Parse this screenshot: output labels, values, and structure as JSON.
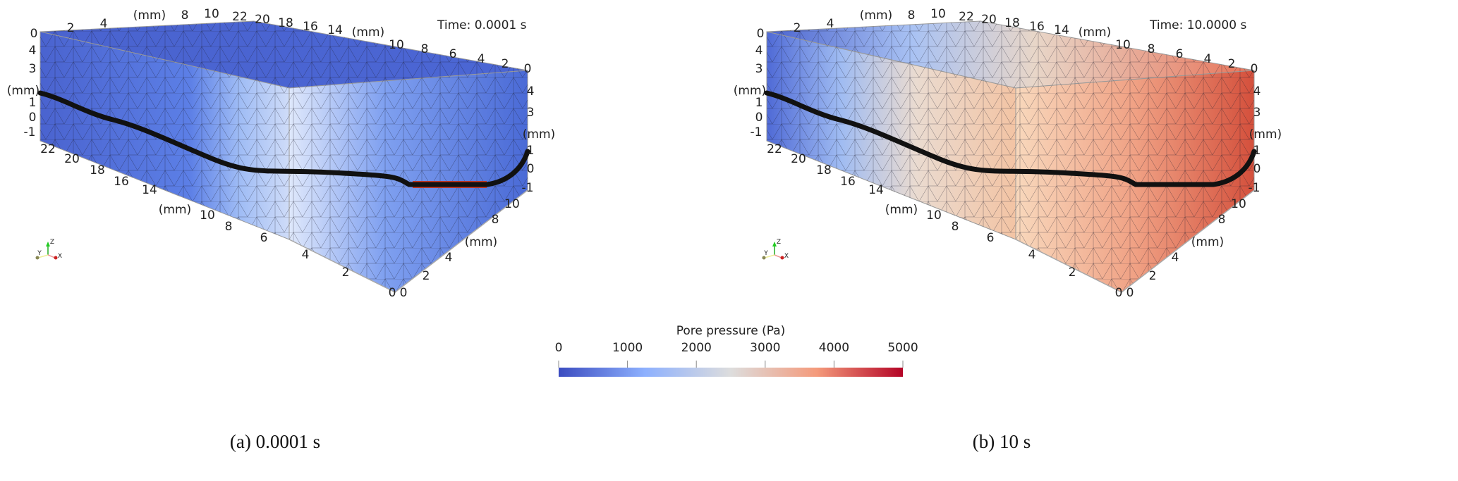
{
  "panels": [
    {
      "time_label": "Time: 0.0001 s",
      "caption": "(a) 0.0001 s",
      "top_left_ticks": [
        "0",
        "2",
        "4",
        "(mm)",
        "8",
        "10"
      ],
      "top_right_ticks": [
        "22",
        "20",
        "18",
        "16",
        "14",
        "(mm)",
        "10",
        "8",
        "6",
        "4",
        "2",
        "0"
      ],
      "left_vertical_ticks": [
        "4",
        "3",
        "(mm)",
        "1",
        "0",
        "-1"
      ],
      "front_bottom_ticks": [
        "22",
        "20",
        "18",
        "16",
        "14",
        "(mm)",
        "10",
        "8",
        "6",
        "4",
        "2",
        "0"
      ],
      "right_bottom_ticks": [
        "0",
        "2",
        "4",
        "(mm)",
        "8",
        "10"
      ],
      "right_vertical_ticks": [
        "4",
        "3",
        "(mm)",
        "1",
        "0",
        "-1"
      ]
    },
    {
      "time_label": "Time: 10.0000 s",
      "caption": "(b) 10 s",
      "top_left_ticks": [
        "0",
        "2",
        "4",
        "(mm)",
        "8",
        "10"
      ],
      "top_right_ticks": [
        "22",
        "20",
        "18",
        "16",
        "14",
        "(mm)",
        "10",
        "8",
        "6",
        "4",
        "2",
        "0"
      ],
      "left_vertical_ticks": [
        "4",
        "3",
        "(mm)",
        "1",
        "0",
        "-1"
      ],
      "front_bottom_ticks": [
        "22",
        "20",
        "18",
        "16",
        "14",
        "(mm)",
        "10",
        "8",
        "6",
        "4",
        "2",
        "0"
      ],
      "right_bottom_ticks": [
        "0",
        "2",
        "4",
        "(mm)",
        "8",
        "10"
      ],
      "right_vertical_ticks": [
        "4",
        "3",
        "(mm)",
        "1",
        "0",
        "-1"
      ]
    }
  ],
  "axes_triad": {
    "x": "X",
    "y": "Y",
    "z": "Z"
  },
  "colorbar": {
    "title": "Pore pressure (Pa)",
    "ticks": [
      "0",
      "1000",
      "2000",
      "3000",
      "4000",
      "5000"
    ],
    "range": [
      0,
      5000
    ],
    "colors": [
      "#3b4cc0",
      "#8db0fe",
      "#dddddd",
      "#f49a7b",
      "#b40426"
    ]
  }
}
